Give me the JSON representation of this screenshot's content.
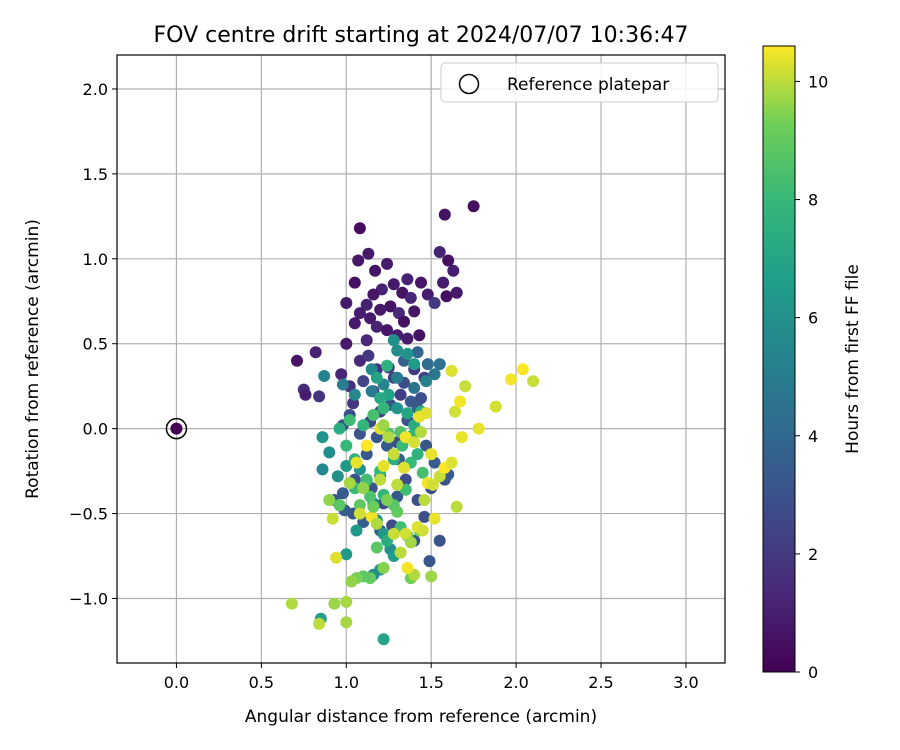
{
  "chart_data": {
    "type": "scatter",
    "title": "FOV centre drift starting at 2024/07/07 10:36:47",
    "xlabel": "Angular distance from reference (arcmin)",
    "ylabel": "Rotation from reference (arcmin)",
    "xlim": [
      -0.35,
      3.23
    ],
    "ylim": [
      -1.38,
      2.2
    ],
    "x_ticks": [
      0.0,
      0.5,
      1.0,
      1.5,
      2.0,
      2.5,
      3.0
    ],
    "x_tick_labels": [
      "0.0",
      "0.5",
      "1.0",
      "1.5",
      "2.0",
      "2.5",
      "3.0"
    ],
    "y_ticks": [
      -1.0,
      -0.5,
      0.0,
      0.5,
      1.0,
      1.5,
      2.0
    ],
    "y_tick_labels": [
      "−1.0",
      "−0.5",
      "0.0",
      "0.5",
      "1.0",
      "1.5",
      "2.0"
    ],
    "grid": true,
    "legend": {
      "placement": "top-right",
      "entries": [
        "Reference platepar"
      ]
    },
    "colorbar": {
      "label": "Hours from first FF file",
      "range": [
        0,
        10.6
      ],
      "ticks": [
        0,
        2,
        4,
        6,
        8,
        10
      ],
      "tick_labels": [
        "0",
        "2",
        "4",
        "6",
        "8",
        "10"
      ],
      "colormap": "viridis"
    },
    "reference_point": {
      "name": "Reference platepar",
      "x": 0.0,
      "y": 0.0
    },
    "series": [
      {
        "color_value": "hours",
        "points": [
          [
            0.0,
            0.0,
            0.0
          ],
          [
            1.75,
            1.31,
            0.5
          ],
          [
            1.58,
            1.26,
            0.6
          ],
          [
            1.08,
            1.18,
            0.4
          ],
          [
            1.13,
            1.03,
            0.8
          ],
          [
            1.55,
            1.04,
            1.2
          ],
          [
            1.07,
            0.99,
            0.7
          ],
          [
            1.24,
            0.97,
            0.9
          ],
          [
            1.6,
            0.99,
            0.5
          ],
          [
            1.63,
            0.93,
            1.0
          ],
          [
            1.17,
            0.93,
            0.6
          ],
          [
            1.36,
            0.88,
            1.1
          ],
          [
            1.44,
            0.86,
            0.7
          ],
          [
            1.57,
            0.86,
            0.9
          ],
          [
            1.05,
            0.86,
            0.5
          ],
          [
            1.28,
            0.85,
            0.8
          ],
          [
            1.21,
            0.82,
            1.2
          ],
          [
            1.16,
            0.79,
            0.7
          ],
          [
            1.33,
            0.8,
            0.6
          ],
          [
            1.48,
            0.79,
            1.0
          ],
          [
            1.65,
            0.8,
            0.8
          ],
          [
            1.59,
            0.78,
            0.5
          ],
          [
            1.38,
            0.77,
            1.3
          ],
          [
            1.52,
            0.74,
            2.0
          ],
          [
            1.0,
            0.74,
            0.9
          ],
          [
            1.12,
            0.73,
            1.1
          ],
          [
            1.26,
            0.72,
            0.6
          ],
          [
            1.2,
            0.7,
            0.8
          ],
          [
            1.31,
            0.68,
            1.4
          ],
          [
            1.4,
            0.69,
            0.7
          ],
          [
            1.08,
            0.68,
            1.0
          ],
          [
            1.14,
            0.65,
            0.9
          ],
          [
            1.34,
            0.63,
            0.5
          ],
          [
            1.05,
            0.62,
            0.8
          ],
          [
            1.18,
            0.6,
            1.2
          ],
          [
            1.24,
            0.58,
            0.7
          ],
          [
            1.3,
            0.55,
            1.0
          ],
          [
            1.43,
            0.55,
            0.6
          ],
          [
            1.36,
            0.53,
            0.9
          ],
          [
            1.12,
            0.52,
            1.3
          ],
          [
            1.0,
            0.5,
            0.8
          ],
          [
            0.71,
            0.4,
            0.7
          ],
          [
            0.82,
            0.45,
            1.1
          ],
          [
            0.75,
            0.23,
            1.5
          ],
          [
            0.76,
            0.2,
            1.0
          ],
          [
            0.84,
            0.19,
            1.8
          ],
          [
            0.97,
            0.32,
            1.3
          ],
          [
            1.02,
            0.25,
            1.6
          ],
          [
            1.08,
            0.4,
            1.4
          ],
          [
            1.13,
            0.43,
            2.0
          ],
          [
            1.18,
            0.35,
            1.7
          ],
          [
            1.25,
            0.36,
            2.2
          ],
          [
            1.04,
            0.15,
            1.9
          ],
          [
            1.1,
            0.28,
            2.5
          ],
          [
            1.16,
            0.22,
            2.1
          ],
          [
            1.2,
            0.1,
            2.6
          ],
          [
            1.28,
            0.3,
            2.3
          ],
          [
            1.34,
            0.27,
            2.8
          ],
          [
            1.4,
            0.35,
            1.9
          ],
          [
            1.46,
            0.3,
            2.4
          ],
          [
            1.02,
            0.08,
            2.7
          ],
          [
            0.98,
            0.02,
            2.9
          ],
          [
            1.08,
            -0.03,
            3.1
          ],
          [
            1.14,
            0.04,
            2.6
          ],
          [
            1.26,
            0.14,
            3.0
          ],
          [
            1.32,
            0.2,
            2.2
          ],
          [
            1.38,
            0.16,
            3.3
          ],
          [
            1.44,
            0.18,
            2.9
          ],
          [
            1.47,
            -0.1,
            3.2
          ],
          [
            1.52,
            -0.2,
            3.5
          ],
          [
            1.5,
            -0.35,
            2.8
          ],
          [
            1.58,
            -0.3,
            3.1
          ],
          [
            1.6,
            -0.27,
            3.4
          ],
          [
            1.42,
            -0.42,
            3.0
          ],
          [
            1.46,
            -0.52,
            2.9
          ],
          [
            1.4,
            -0.66,
            3.2
          ],
          [
            1.49,
            -0.78,
            3.3
          ],
          [
            1.55,
            -0.66,
            3.1
          ],
          [
            1.27,
            -0.57,
            2.7
          ],
          [
            1.2,
            -0.6,
            3.4
          ],
          [
            1.1,
            -0.55,
            3.6
          ],
          [
            1.04,
            -0.5,
            3.3
          ],
          [
            0.99,
            -0.48,
            3.5
          ],
          [
            0.93,
            -0.42,
            3.2
          ],
          [
            0.98,
            -0.38,
            3.4
          ],
          [
            1.05,
            -0.3,
            3.1
          ],
          [
            1.15,
            -0.35,
            3.0
          ],
          [
            1.22,
            -0.44,
            2.8
          ],
          [
            1.3,
            -0.4,
            3.3
          ],
          [
            1.35,
            -0.3,
            2.9
          ],
          [
            1.31,
            -0.18,
            3.6
          ],
          [
            1.24,
            -0.1,
            3.4
          ],
          [
            1.18,
            -0.05,
            3.2
          ],
          [
            1.12,
            -0.15,
            3.3
          ],
          [
            1.2,
            -0.28,
            3.5
          ],
          [
            1.3,
            -0.08,
            2.9
          ],
          [
            1.36,
            0.05,
            3.1
          ],
          [
            1.42,
            0.12,
            3.4
          ],
          [
            1.34,
            0.4,
            3.7
          ],
          [
            1.42,
            0.45,
            3.9
          ],
          [
            1.48,
            0.38,
            4.2
          ],
          [
            1.55,
            0.38,
            4.5
          ],
          [
            1.52,
            0.32,
            4.8
          ],
          [
            1.47,
            0.28,
            5.2
          ],
          [
            1.4,
            0.24,
            4.6
          ],
          [
            1.3,
            0.3,
            5.0
          ],
          [
            1.22,
            0.26,
            5.4
          ],
          [
            1.15,
            0.22,
            4.9
          ],
          [
            1.05,
            0.2,
            5.6
          ],
          [
            0.98,
            0.26,
            5.1
          ],
          [
            0.87,
            0.31,
            5.3
          ],
          [
            0.86,
            -0.05,
            6.2
          ],
          [
            0.86,
            -0.24,
            5.5
          ],
          [
            0.9,
            -0.14,
            5.8
          ],
          [
            0.95,
            -0.28,
            6.0
          ],
          [
            1.0,
            -0.22,
            6.4
          ],
          [
            1.08,
            -0.24,
            6.1
          ],
          [
            1.12,
            -0.31,
            5.7
          ],
          [
            1.16,
            -0.44,
            5.4
          ],
          [
            1.18,
            -0.54,
            5.9
          ],
          [
            1.22,
            -0.62,
            6.3
          ],
          [
            1.26,
            -0.71,
            6.0
          ],
          [
            1.28,
            -0.75,
            6.6
          ],
          [
            1.2,
            -0.83,
            6.2
          ],
          [
            1.16,
            -0.86,
            5.8
          ],
          [
            1.0,
            -0.74,
            6.5
          ],
          [
            1.06,
            -0.6,
            6.4
          ],
          [
            0.85,
            -1.12,
            6.8
          ],
          [
            1.22,
            -1.24,
            7.0
          ],
          [
            1.3,
            0.12,
            6.2
          ],
          [
            1.25,
            0.2,
            6.8
          ],
          [
            1.2,
            0.18,
            7.2
          ],
          [
            1.15,
            0.35,
            5.6
          ],
          [
            1.18,
            0.3,
            6.9
          ],
          [
            1.24,
            0.37,
            7.6
          ],
          [
            1.3,
            0.46,
            5.8
          ],
          [
            1.36,
            0.44,
            6.1
          ],
          [
            1.4,
            0.38,
            6.5
          ],
          [
            1.28,
            0.52,
            5.9
          ],
          [
            1.36,
            0.09,
            7.0
          ],
          [
            1.4,
            0.02,
            7.3
          ],
          [
            1.44,
            0.1,
            7.6
          ],
          [
            1.39,
            -0.04,
            7.8
          ],
          [
            1.33,
            -0.1,
            8.1
          ],
          [
            1.28,
            -0.18,
            7.5
          ],
          [
            1.2,
            -0.25,
            7.9
          ],
          [
            1.12,
            -0.3,
            8.3
          ],
          [
            1.05,
            -0.18,
            7.7
          ],
          [
            1.0,
            -0.1,
            8.0
          ],
          [
            0.96,
            0.0,
            7.4
          ],
          [
            1.02,
            0.05,
            8.2
          ],
          [
            1.1,
            0.02,
            7.8
          ],
          [
            1.16,
            0.08,
            8.4
          ],
          [
            1.22,
            0.12,
            7.9
          ],
          [
            1.25,
            -0.03,
            8.5
          ],
          [
            1.32,
            -0.02,
            8.6
          ],
          [
            1.38,
            -0.2,
            8.0
          ],
          [
            1.45,
            -0.26,
            8.4
          ],
          [
            1.42,
            -0.15,
            7.6
          ],
          [
            1.35,
            -0.36,
            8.2
          ],
          [
            1.28,
            -0.45,
            8.7
          ],
          [
            1.22,
            -0.39,
            7.9
          ],
          [
            1.14,
            -0.4,
            8.5
          ],
          [
            1.08,
            -0.45,
            8.9
          ],
          [
            1.05,
            -0.35,
            8.1
          ],
          [
            1.18,
            -0.7,
            8.8
          ],
          [
            1.24,
            -0.66,
            7.4
          ],
          [
            1.32,
            -0.58,
            8.3
          ],
          [
            1.36,
            -0.63,
            8.9
          ],
          [
            1.43,
            -0.6,
            9.2
          ],
          [
            1.38,
            -0.88,
            9.3
          ],
          [
            1.14,
            -0.88,
            9.1
          ],
          [
            1.1,
            -0.87,
            8.9
          ],
          [
            1.06,
            -0.88,
            9.4
          ],
          [
            1.03,
            -0.9,
            9.6
          ],
          [
            1.0,
            -1.02,
            9.8
          ],
          [
            0.93,
            -1.03,
            9.7
          ],
          [
            0.68,
            -1.03,
            9.9
          ],
          [
            0.84,
            -1.15,
            10.0
          ],
          [
            1.0,
            -1.14,
            9.8
          ],
          [
            1.22,
            -0.82,
            9.5
          ],
          [
            1.4,
            -0.86,
            9.9
          ],
          [
            1.5,
            -0.87,
            9.7
          ],
          [
            0.9,
            -0.42,
            9.6
          ],
          [
            0.92,
            -0.53,
            10.1
          ],
          [
            0.94,
            -0.76,
            10.3
          ],
          [
            1.02,
            -0.32,
            9.8
          ],
          [
            1.08,
            -0.5,
            10.2
          ],
          [
            1.15,
            -0.52,
            10.5
          ],
          [
            1.2,
            -0.3,
            10.0
          ],
          [
            1.22,
            -0.22,
            10.4
          ],
          [
            1.28,
            -0.15,
            10.1
          ],
          [
            1.25,
            -0.05,
            9.9
          ],
          [
            1.2,
            0.0,
            10.3
          ],
          [
            1.22,
            0.02,
            9.7
          ],
          [
            1.35,
            -0.05,
            10.5
          ],
          [
            1.4,
            -0.08,
            10.2
          ],
          [
            1.44,
            -0.02,
            9.9
          ],
          [
            1.5,
            -0.15,
            10.4
          ],
          [
            1.55,
            -0.28,
            10.1
          ],
          [
            1.58,
            -0.23,
            10.6
          ],
          [
            1.62,
            -0.2,
            10.3
          ],
          [
            1.65,
            -0.46,
            10.0
          ],
          [
            1.68,
            -0.05,
            10.4
          ],
          [
            1.64,
            0.1,
            10.2
          ],
          [
            1.67,
            0.16,
            10.5
          ],
          [
            1.7,
            0.25,
            10.1
          ],
          [
            1.62,
            0.34,
            10.3
          ],
          [
            1.78,
            0.0,
            10.4
          ],
          [
            1.88,
            0.13,
            10.2
          ],
          [
            1.97,
            0.29,
            10.5
          ],
          [
            2.04,
            0.35,
            10.6
          ],
          [
            2.1,
            0.28,
            10.1
          ],
          [
            1.47,
            0.09,
            10.3
          ],
          [
            1.52,
            -0.53,
            10.4
          ],
          [
            1.35,
            -0.62,
            10.2
          ],
          [
            1.38,
            -0.67,
            9.8
          ],
          [
            1.32,
            -0.73,
            10.0
          ],
          [
            1.36,
            -0.82,
            10.5
          ],
          [
            1.18,
            -0.56,
            9.9
          ],
          [
            1.28,
            -0.62,
            10.1
          ],
          [
            1.42,
            -0.58,
            10.3
          ],
          [
            1.45,
            -0.6,
            10.2
          ],
          [
            1.06,
            -0.2,
            10.4
          ],
          [
            1.12,
            -0.1,
            10.6
          ],
          [
            1.48,
            -0.32,
            10.5
          ],
          [
            1.46,
            -0.42,
            10.0
          ],
          [
            1.51,
            -0.33,
            10.2
          ],
          [
            1.43,
            0.07,
            10.4
          ],
          [
            1.34,
            -0.23,
            10.3
          ],
          [
            1.3,
            -0.33,
            10.0
          ],
          [
            1.1,
            -0.35,
            9.6
          ],
          [
            1.16,
            -0.46,
            9.2
          ],
          [
            1.24,
            -0.42,
            9.4
          ],
          [
            1.3,
            -0.49,
            9.0
          ],
          [
            0.96,
            -0.45,
            8.8
          ]
        ]
      }
    ]
  }
}
